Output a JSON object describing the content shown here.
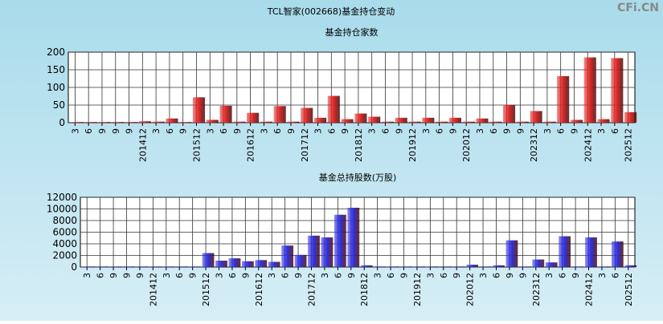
{
  "page_title": "TCL智家(002668)基金持仓变动",
  "watermark": "CFi.CN",
  "chart_data": [
    {
      "type": "bar",
      "title": "基金持仓家数",
      "color": "#e02828",
      "grid": true,
      "categories": [
        "3",
        "6",
        "9",
        "9",
        "9",
        "201412",
        "3",
        "6",
        "9",
        "201512",
        "3",
        "6",
        "9",
        "201612",
        "3",
        "6",
        "9",
        "201712",
        "3",
        "6",
        "9",
        "201812",
        "3",
        "6",
        "9",
        "201912",
        "3",
        "6",
        "9",
        "202012",
        "3",
        "6",
        "9",
        "9",
        "202312",
        "3",
        "6",
        "9",
        "202412",
        "3",
        "6",
        "202512"
      ],
      "values": [
        2,
        2,
        2,
        2,
        2,
        4,
        3,
        12,
        2,
        72,
        8,
        48,
        3,
        28,
        3,
        47,
        3,
        42,
        14,
        76,
        10,
        26,
        17,
        3,
        14,
        3,
        14,
        3,
        14,
        3,
        12,
        3,
        50,
        3,
        33,
        3,
        132,
        8,
        185,
        10,
        183,
        30
      ],
      "ylim": [
        0,
        200
      ],
      "yticks": [
        0,
        50,
        100,
        150,
        200
      ]
    },
    {
      "type": "bar",
      "title": "基金总持股数(万股)",
      "color": "#3030e0",
      "grid": true,
      "categories": [
        "3",
        "6",
        "9",
        "9",
        "9",
        "201412",
        "3",
        "6",
        "9",
        "201512",
        "3",
        "6",
        "9",
        "201612",
        "3",
        "6",
        "9",
        "201712",
        "3",
        "6",
        "9",
        "201812",
        "3",
        "6",
        "9",
        "201912",
        "3",
        "6",
        "9",
        "202012",
        "3",
        "6",
        "9",
        "9",
        "202312",
        "3",
        "6",
        "9",
        "202412",
        "3",
        "6",
        "202512"
      ],
      "values": [
        100,
        100,
        100,
        100,
        100,
        100,
        100,
        100,
        100,
        2400,
        1100,
        1500,
        1000,
        1200,
        900,
        3700,
        2100,
        5400,
        5100,
        9000,
        10200,
        300,
        100,
        100,
        100,
        100,
        100,
        100,
        100,
        400,
        100,
        300,
        4600,
        100,
        1300,
        800,
        5300,
        100,
        5100,
        100,
        4400,
        300
      ],
      "ylim": [
        0,
        12000
      ],
      "yticks": [
        0,
        2000,
        4000,
        6000,
        8000,
        10000,
        12000
      ]
    }
  ]
}
